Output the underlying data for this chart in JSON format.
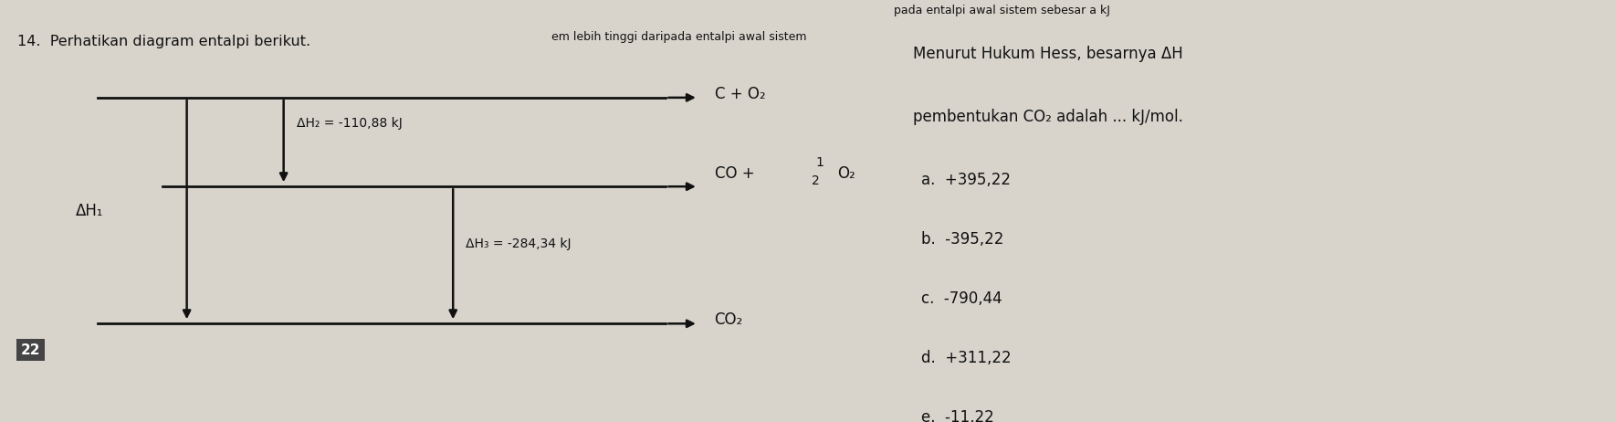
{
  "background_color": "#d8d4cc",
  "title_number": "14.",
  "title_text": "Perhatikan diagram entalpi berikut.",
  "header_text": "pada entalpi awal sistem sebesar a kJ",
  "header_text2": "em lebih tinggi daripada entalpi awal sistem",
  "label_C_O2": "C + O₂",
  "label_CO_top": "CO + ",
  "label_CO_frac": "1",
  "label_CO_frac2": "2",
  "label_CO_O2": "O₂",
  "label_CO2": "CO₂",
  "dH1_label": "ΔH₁",
  "dH2_label": "ΔH₂ = -110,88 kJ",
  "dH3_label": "ΔH₃ = -284,34 kJ",
  "question_text": "Menurut Hukum Hess, besarnya ΔH",
  "question_text2": "pembentukan CO₂ adalah ... kJ/mol.",
  "options": [
    "a.  +395,22",
    "b.  -395,22",
    "c.  -790,44",
    "d.  +311,22",
    "e.  -11,22"
  ],
  "line_color": "#111111",
  "text_color": "#111111",
  "page_num": "22",
  "fig_width": 17.7,
  "fig_height": 4.62
}
